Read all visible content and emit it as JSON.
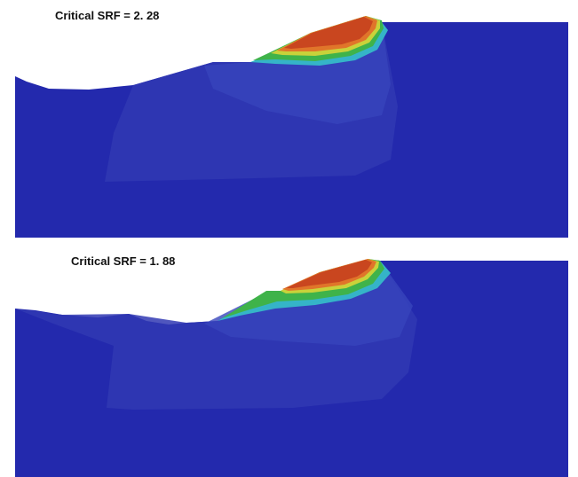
{
  "panels": [
    {
      "title": "Critical SRF = 2. 28",
      "srf": 2.28
    },
    {
      "title": "Critical SRF = 1. 88",
      "srf": 1.88
    }
  ],
  "colors": {
    "background_mesh": "#2329ad",
    "shear_zone_light": "#3340b8",
    "shear_zone_mid": "#3a55c0",
    "band_cyan": "#35b4c8",
    "band_green": "#3fb34a",
    "band_yellow": "#c9d23a",
    "band_orange": "#e0752a",
    "core_red": "#c9461f"
  }
}
